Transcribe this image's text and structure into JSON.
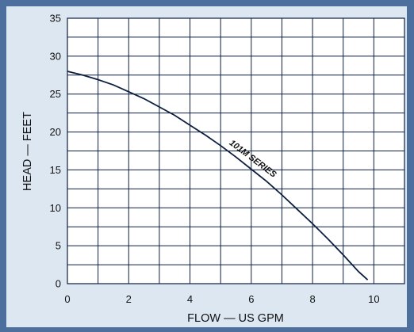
{
  "chart_data": {
    "type": "line",
    "title": "",
    "xlabel": "FLOW — US GPM",
    "ylabel": "HEAD — FEET",
    "xlim": [
      0,
      11
    ],
    "ylim": [
      0,
      35
    ],
    "x_ticks": [
      0,
      2,
      4,
      6,
      8,
      10
    ],
    "y_ticks": [
      0,
      5,
      10,
      15,
      20,
      25,
      30,
      35
    ],
    "grid": true,
    "series": [
      {
        "name": "101M SERIES",
        "x": [
          0,
          0.5,
          1,
          1.5,
          2,
          2.5,
          3,
          3.5,
          4,
          4.5,
          5,
          5.5,
          6,
          6.5,
          7,
          7.5,
          8,
          8.5,
          9,
          9.5,
          9.8
        ],
        "y": [
          28.0,
          27.5,
          26.9,
          26.2,
          25.3,
          24.4,
          23.3,
          22.2,
          20.9,
          19.6,
          18.2,
          16.7,
          15.1,
          13.5,
          11.7,
          9.8,
          7.9,
          5.9,
          3.8,
          1.6,
          0.5
        ]
      }
    ],
    "annotations": [
      {
        "text": "101M SERIES",
        "x": 6.0,
        "y": 16.2
      }
    ]
  }
}
